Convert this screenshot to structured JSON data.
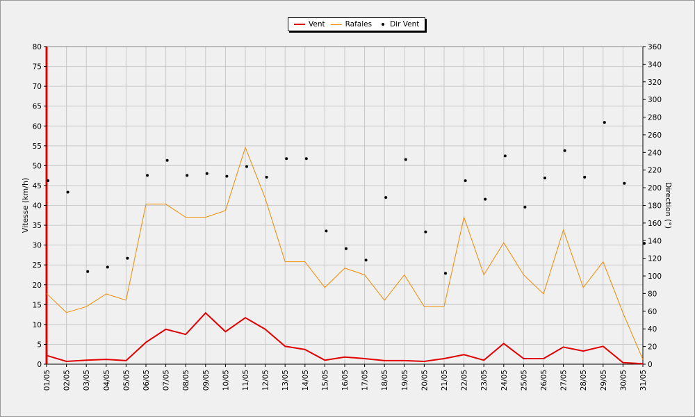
{
  "legend": {
    "vent": "Vent",
    "rafales": "Rafales",
    "dir": "Dir Vent"
  },
  "colors": {
    "vent": "#e00000",
    "rafales": "#f08a00",
    "dir": "#000000",
    "grid": "#c8c8c8",
    "background": "#f0f0f0"
  },
  "chart_data": {
    "type": "line",
    "categories": [
      "01/05",
      "02/05",
      "03/05",
      "04/05",
      "05/05",
      "06/05",
      "07/05",
      "08/05",
      "09/05",
      "10/05",
      "11/05",
      "12/05",
      "13/05",
      "14/05",
      "15/05",
      "16/05",
      "17/05",
      "18/05",
      "19/05",
      "20/05",
      "21/05",
      "22/05",
      "23/05",
      "24/05",
      "25/05",
      "26/05",
      "27/05",
      "28/05",
      "29/05",
      "30/05",
      "31/05"
    ],
    "ylabel": "Vitesse (km/h)",
    "y2label": "Direction (°)",
    "ylim": [
      0,
      80
    ],
    "y2lim": [
      0,
      360
    ],
    "yticks": [
      "0",
      "5",
      "10",
      "15",
      "20",
      "25",
      "30",
      "35",
      "40",
      "45",
      "50",
      "55",
      "60",
      "65",
      "70",
      "75",
      "80"
    ],
    "y2ticks": [
      "0",
      "20",
      "40",
      "60",
      "80",
      "100",
      "120",
      "140",
      "160",
      "180",
      "200",
      "220",
      "240",
      "260",
      "280",
      "300",
      "320",
      "340",
      "360"
    ],
    "grid": true,
    "legend_position": "top-center",
    "series": [
      {
        "name": "Vent",
        "axis": "left",
        "style": "line",
        "values": [
          2.2,
          0.7,
          1.0,
          1.2,
          0.9,
          5.5,
          8.8,
          7.5,
          12.9,
          8.2,
          11.7,
          8.8,
          4.5,
          3.7,
          1.0,
          1.8,
          1.4,
          0.9,
          0.9,
          0.7,
          1.4,
          2.4,
          1.0,
          5.2,
          1.4,
          1.4,
          4.3,
          3.3,
          4.5,
          0.4,
          0.1
        ]
      },
      {
        "name": "Rafales",
        "axis": "left",
        "style": "line",
        "values": [
          17.8,
          13.0,
          14.5,
          17.7,
          16.1,
          40.3,
          40.3,
          37.0,
          37.0,
          38.7,
          54.6,
          41.8,
          25.8,
          25.8,
          19.3,
          24.2,
          22.5,
          16.1,
          22.5,
          14.5,
          14.5,
          37.0,
          22.5,
          30.6,
          22.5,
          17.7,
          33.8,
          19.3,
          25.8,
          12.9,
          1.2
        ]
      },
      {
        "name": "Dir Vent",
        "axis": "right",
        "style": "scatter",
        "values": [
          208,
          195,
          105,
          110,
          120,
          214,
          231,
          214,
          216,
          213,
          224,
          212,
          233,
          233,
          151,
          131,
          118,
          189,
          232,
          150,
          103,
          208,
          187,
          236,
          178,
          211,
          242,
          212,
          274,
          205,
          137
        ]
      }
    ]
  }
}
